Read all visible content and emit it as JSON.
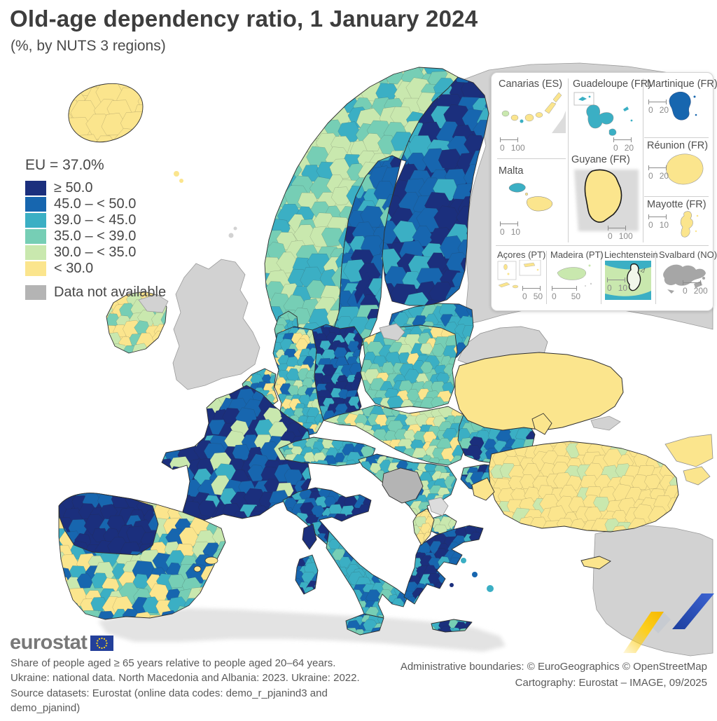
{
  "header": {
    "title": "Old-age dependency ratio, 1 January 2024",
    "subtitle": "(%, by NUTS 3 regions)"
  },
  "legend": {
    "eu_value_label": "EU = 37.0%",
    "classes": [
      {
        "key": "navy",
        "label": "≥ 50.0",
        "color": "#1b2f7d"
      },
      {
        "key": "blue",
        "label": "45.0 – < 50.0",
        "color": "#1766af"
      },
      {
        "key": "teal",
        "label": "39.0 – < 45.0",
        "color": "#3bafc4"
      },
      {
        "key": "green",
        "label": "35.0 – < 39.0",
        "color": "#76ceb5"
      },
      {
        "key": "lgreen",
        "label": "30.0 – < 35.0",
        "color": "#c9e8ae"
      },
      {
        "key": "yellow",
        "label": "< 30.0",
        "color": "#fbe58d"
      }
    ],
    "no_data": {
      "label": "Data not available",
      "color": "#b4b4b4"
    }
  },
  "flat_colors": {
    "noncovered": "#d2d2d2",
    "kosovo": "#dcdcdc",
    "nafrica": "#e0e0e0",
    "border": "#2f2f2f"
  },
  "watermark": {
    "yellow": "#fdcf1e",
    "blue": "#2d53c0",
    "gray": "#c7cbd1"
  },
  "eu_flag": {
    "blue": "#24409a",
    "star": "#ffd617"
  },
  "insets": {
    "items": [
      {
        "label": "Canarias (ES)",
        "scale_from": "0",
        "scale_to": "100"
      },
      {
        "label": "Guadeloupe (FR)",
        "scale_from": "0",
        "scale_to": "20"
      },
      {
        "label": "Martinique (FR)",
        "scale_from": "0",
        "scale_to": "20"
      },
      {
        "label": "Malta",
        "scale_from": "0",
        "scale_to": "10"
      },
      {
        "label": "Guyane (FR)",
        "scale_from": "0",
        "scale_to": "100"
      },
      {
        "label": "Réunion (FR)",
        "scale_from": "0",
        "scale_to": "20"
      },
      {
        "label": "Mayotte (FR)",
        "scale_from": "0",
        "scale_to": "10"
      },
      {
        "label": "Açores (PT)",
        "scale_from": "0",
        "scale_to": "50"
      },
      {
        "label": "Madeira (PT)",
        "scale_from": "0",
        "scale_to": "50"
      },
      {
        "label": "Liechtenstein",
        "scale_from": "0",
        "scale_to": "10"
      },
      {
        "label": "Svalbard (NO)",
        "scale_from": "0",
        "scale_to": "200"
      }
    ]
  },
  "footer": {
    "logo_text": "eurostat",
    "note_line1": "Share of people aged ≥ 65 years relative to people aged 20–64 years.",
    "note_line2": "Ukraine: national data. North Macedonia and Albania: 2023. Ukraine: 2022.",
    "note_line3": "Source datasets: Eurostat (online data codes: demo_r_pjanind3 and",
    "note_line4": "demo_pjanind)",
    "credit_line1": "Administrative boundaries: © EuroGeographics © OpenStreetMap",
    "credit_line2": "Cartography: Eurostat – IMAGE, 09/2025"
  }
}
